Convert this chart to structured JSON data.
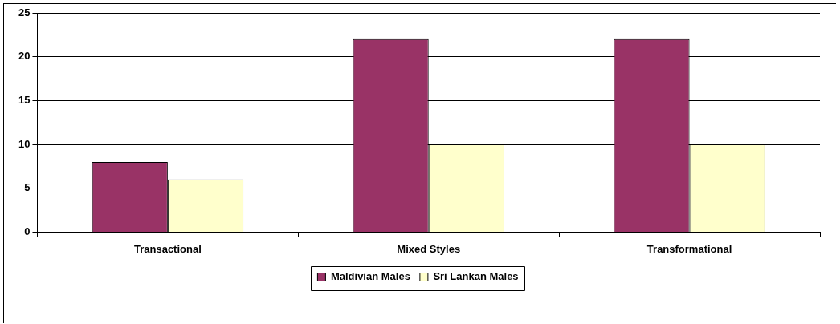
{
  "chart_data": {
    "type": "bar",
    "categories": [
      "Transactional",
      "Mixed Styles",
      "Transformational"
    ],
    "series": [
      {
        "name": "Maldivian Males",
        "color": "#993366",
        "values": [
          8,
          22,
          22
        ]
      },
      {
        "name": "Sri Lankan Males",
        "color": "#ffffcc",
        "values": [
          6,
          10,
          10
        ]
      }
    ],
    "ylim": [
      0,
      25
    ],
    "yticks": [
      0,
      5,
      10,
      15,
      20,
      25
    ],
    "grid": "y",
    "legend": "bottom"
  }
}
